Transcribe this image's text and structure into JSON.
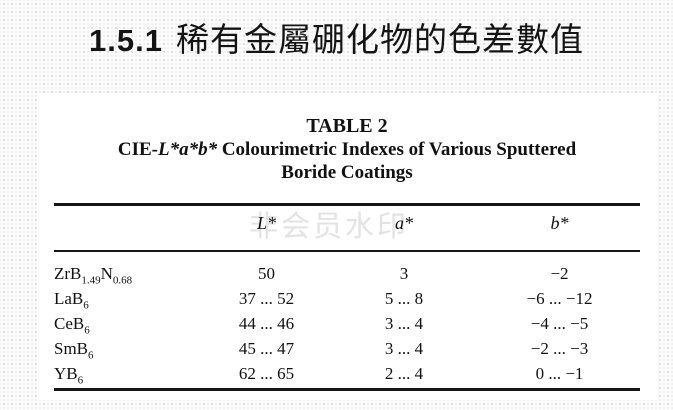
{
  "slide": {
    "title_number": "1.5.1",
    "title_text": "稀有金屬硼化物的色差數值"
  },
  "watermark": "非会员水印",
  "table": {
    "caption_line1": "TABLE 2",
    "caption_line2_prefix": "CIE-",
    "caption_line2_italic": "L*a*b*",
    "caption_line2_rest": " Colourimetric Indexes of Various Sputtered",
    "caption_line3": "Boride Coatings",
    "columns": [
      "L*",
      "a*",
      "b*"
    ],
    "rows": [
      {
        "substance": "ZrB_{1.49}N_{0.68}",
        "L": "50",
        "a": "3",
        "b": "−2"
      },
      {
        "substance": "LaB_{6}",
        "L": "37 ... 52",
        "a": "5 ... 8",
        "b": "−6 ... −12"
      },
      {
        "substance": "CeB_{6}",
        "L": "44 ... 46",
        "a": "3 ... 4",
        "b": "−4 ... −5"
      },
      {
        "substance": "SmB_{6}",
        "L": "45 ... 47",
        "a": "3 ... 4",
        "b": "−2 ... −3"
      },
      {
        "substance": "YB_{6}",
        "L": "62 ... 65",
        "a": "2 ... 4",
        "b": "0 ... −1"
      }
    ]
  },
  "colors": {
    "text": "#141414",
    "rule": "#161616",
    "panel_background": "#ffffff",
    "page_background": "#fbfbfb",
    "watermark": "#e3e3e3"
  }
}
